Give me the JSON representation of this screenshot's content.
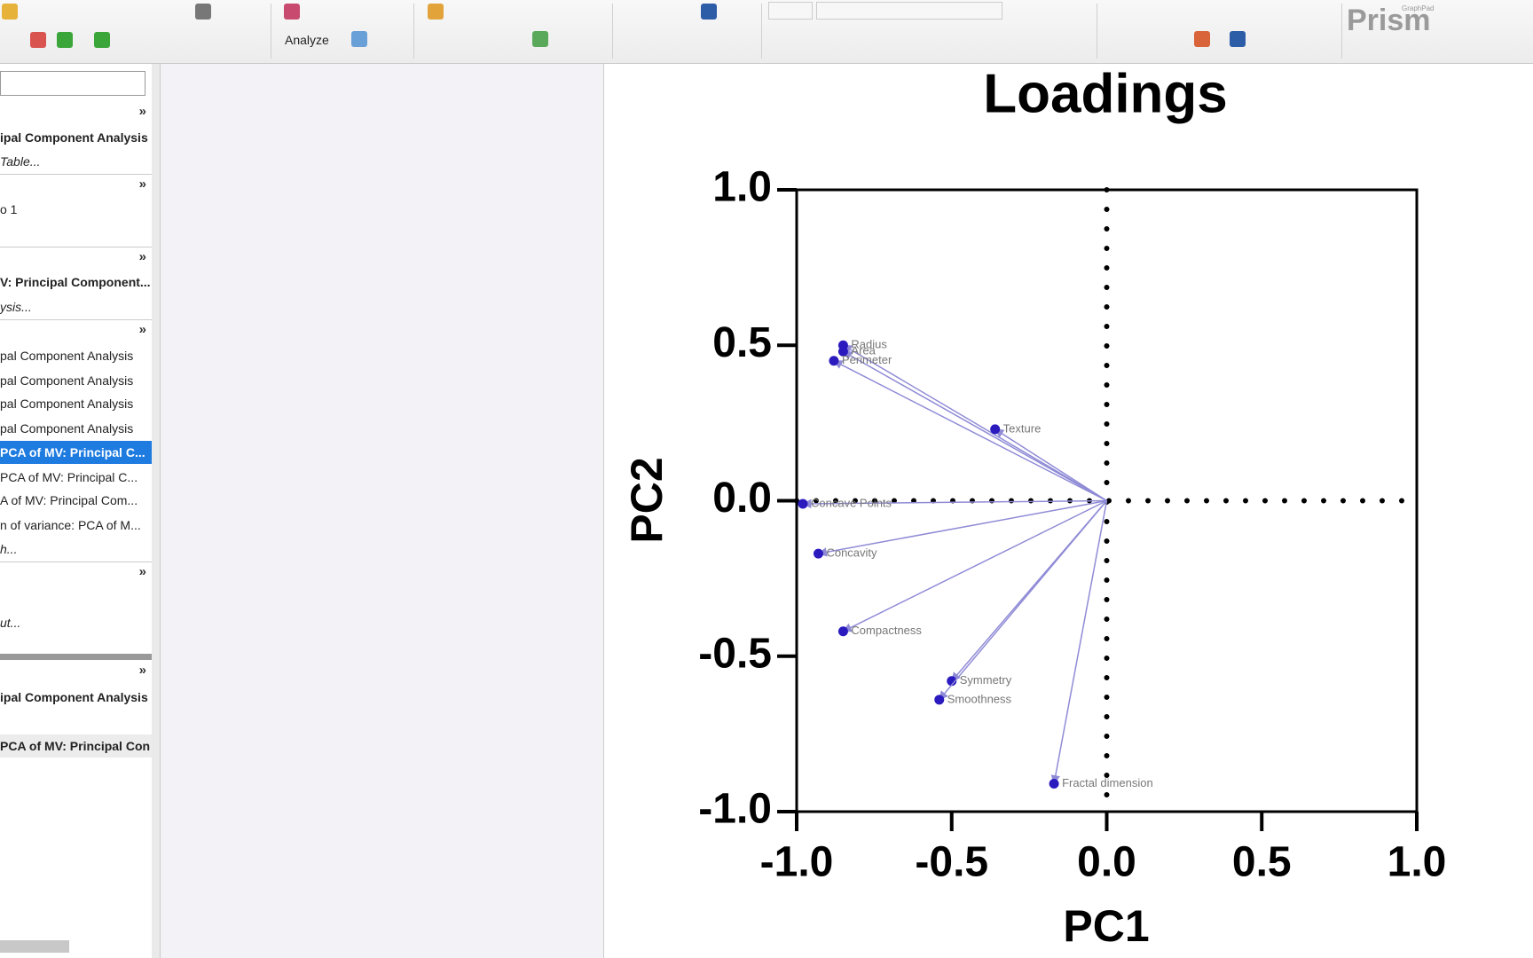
{
  "toolbar": {
    "analyze": "Analyze",
    "brand_small": "GraphPad",
    "brand": "Prism"
  },
  "sidebar": {
    "chevron": "»",
    "items": [
      "ipal Component Analysis",
      "Table...",
      "o 1",
      "V: Principal Component...",
      "ysis...",
      "pal Component Analysis",
      "pal Component Analysis",
      "pal Component Analysis",
      "pal Component Analysis",
      "PCA of MV: Principal C...",
      "PCA of MV: Principal C...",
      "A of MV: Principal Com...",
      "n of variance: PCA of M...",
      "h...",
      "ut...",
      "ipal Component Analysis",
      "PCA of MV: Principal Con"
    ]
  },
  "chart_data": {
    "type": "scatter",
    "title": "Loadings",
    "x_label": "PC1",
    "y_label": "PC2",
    "point_labels": [
      "Radius",
      "Area",
      "Perimeter",
      "Texture",
      "Concave Points",
      "Concavity",
      "Compactness",
      "Symmetry",
      "Smoothness",
      "Fractal dimension"
    ],
    "x": [
      -0.85,
      -0.85,
      -0.88,
      -0.36,
      -0.98,
      -0.93,
      -0.85,
      -0.5,
      -0.54,
      -0.17
    ],
    "values": [
      0.5,
      0.48,
      0.45,
      0.23,
      -0.01,
      -0.17,
      -0.42,
      -0.58,
      -0.64,
      -0.91
    ],
    "color": "#2b1bbf",
    "vector_color": "#8f8bd6",
    "vectors_from_origin": true,
    "zero_lines": true,
    "xlim": [
      -1.0,
      1.0
    ],
    "ylim": [
      -1.0,
      1.0
    ],
    "xticks": [
      {
        "value": -1.0,
        "label": "-1.0"
      },
      {
        "value": -0.5,
        "label": "-0.5"
      },
      {
        "value": 0,
        "label": "0.0"
      },
      {
        "value": 0.5,
        "label": "0.5"
      },
      {
        "value": 1.0,
        "label": "1.0"
      }
    ],
    "yticks": [
      {
        "value": -1.0,
        "label": "-1.0"
      },
      {
        "value": -0.5,
        "label": "-0.5"
      },
      {
        "value": 0,
        "label": "0.0"
      },
      {
        "value": 0.5,
        "label": "0.5"
      },
      {
        "value": 1.0,
        "label": "1.0"
      }
    ]
  }
}
